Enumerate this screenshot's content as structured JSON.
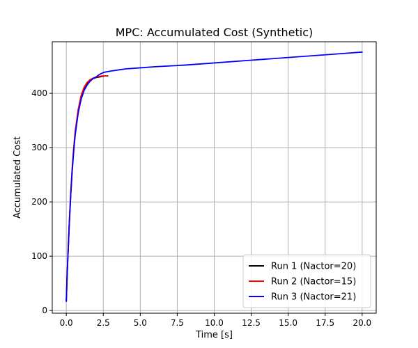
{
  "chart_data": {
    "type": "line",
    "title": "MPC: Accumulated Cost (Synthetic)",
    "xlabel": "Time [s]",
    "ylabel": "Accumulated Cost",
    "xlim": [
      -0.95,
      20.95
    ],
    "ylim": [
      -5,
      495
    ],
    "xticks": [
      0.0,
      2.5,
      5.0,
      7.5,
      10.0,
      12.5,
      15.0,
      17.5,
      20.0
    ],
    "xtick_labels": [
      "0.0",
      "2.5",
      "5.0",
      "7.5",
      "10.0",
      "12.5",
      "15.0",
      "17.5",
      "20.0"
    ],
    "yticks": [
      0,
      100,
      200,
      300,
      400
    ],
    "ytick_labels": [
      "0",
      "100",
      "200",
      "300",
      "400"
    ],
    "grid": true,
    "legend_position": "lower-right",
    "series": [
      {
        "name": "Run 1 (Nactor=20)",
        "color": "#000000",
        "x": [
          0.0,
          0.05,
          0.1,
          0.2,
          0.3,
          0.4,
          0.5,
          0.6,
          0.8,
          1.0,
          1.2,
          1.4,
          1.6,
          1.8,
          2.0,
          2.2,
          2.4,
          2.6,
          2.8
        ],
        "y": [
          17,
          60,
          95,
          160,
          215,
          260,
          296,
          326,
          366,
          392,
          408,
          418,
          424,
          427,
          429,
          430,
          431,
          432,
          432
        ]
      },
      {
        "name": "Run 2 (Nactor=15)",
        "color": "#ff0000",
        "x": [
          0.0,
          0.05,
          0.1,
          0.2,
          0.3,
          0.4,
          0.5,
          0.6,
          0.8,
          1.0,
          1.2,
          1.4,
          1.6,
          1.8,
          2.0,
          2.2,
          2.4,
          2.6,
          2.75
        ],
        "y": [
          17,
          62,
          97,
          163,
          218,
          263,
          300,
          330,
          370,
          396,
          411,
          420,
          425,
          428,
          430,
          431,
          432,
          432,
          432
        ]
      },
      {
        "name": "Run 3 (Nactor=21)",
        "color": "#0000ff",
        "x": [
          0.0,
          0.05,
          0.1,
          0.2,
          0.3,
          0.4,
          0.5,
          0.6,
          0.8,
          1.0,
          1.2,
          1.4,
          1.6,
          1.8,
          2.0,
          2.2,
          2.4,
          2.6,
          2.8,
          3.0,
          3.5,
          4.0,
          5.0,
          6.0,
          8.0,
          10.0,
          12.5,
          15.0,
          17.5,
          20.0
        ],
        "y": [
          17,
          58,
          92,
          157,
          212,
          257,
          293,
          323,
          363,
          389,
          405,
          415,
          422,
          427,
          430,
          434,
          437,
          439,
          440,
          441,
          443,
          445,
          447,
          449,
          452,
          456,
          461,
          466,
          471,
          476
        ]
      }
    ]
  }
}
